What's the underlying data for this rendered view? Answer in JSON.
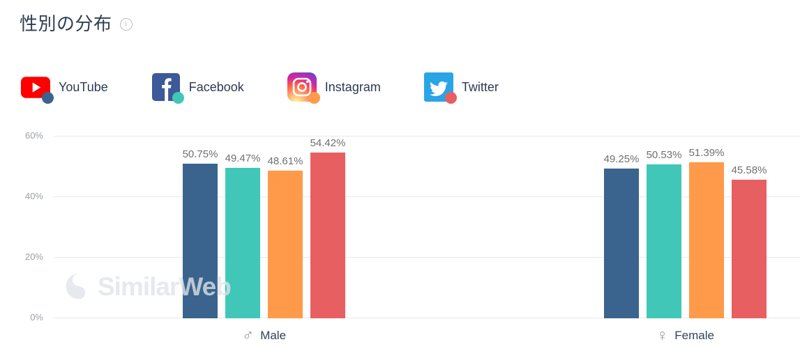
{
  "header": {
    "title": "性別の分布"
  },
  "legend": {
    "items": [
      {
        "label": "YouTube",
        "icon": "youtube-icon",
        "dot_color": "#3A648D"
      },
      {
        "label": "Facebook",
        "icon": "facebook-icon",
        "dot_color": "#41C7B8"
      },
      {
        "label": "Instagram",
        "icon": "instagram-icon",
        "dot_color": "#FF9A4A"
      },
      {
        "label": "Twitter",
        "icon": "twitter-icon",
        "dot_color": "#E85F61"
      }
    ]
  },
  "chart_data": {
    "type": "bar",
    "title": "性別の分布",
    "categories": [
      "Male",
      "Female"
    ],
    "category_symbols": [
      "♂",
      "♀"
    ],
    "series": [
      {
        "name": "YouTube",
        "color": "#3A648D",
        "values": [
          50.75,
          49.25
        ]
      },
      {
        "name": "Facebook",
        "color": "#41C7B8",
        "values": [
          49.47,
          50.53
        ]
      },
      {
        "name": "Instagram",
        "color": "#FF9A4A",
        "values": [
          48.61,
          51.39
        ]
      },
      {
        "name": "Twitter",
        "color": "#E85F61",
        "values": [
          54.42,
          45.58
        ]
      }
    ],
    "value_labels": [
      [
        "50.75%",
        "49.47%",
        "48.61%",
        "54.42%"
      ],
      [
        "49.25%",
        "50.53%",
        "51.39%",
        "45.58%"
      ]
    ],
    "y_ticks": [
      "60%",
      "40%",
      "20%",
      "0%"
    ],
    "ylim": [
      0,
      60
    ],
    "grid": true,
    "legend_position": "top"
  },
  "watermark": {
    "text": "SimilarWeb"
  }
}
